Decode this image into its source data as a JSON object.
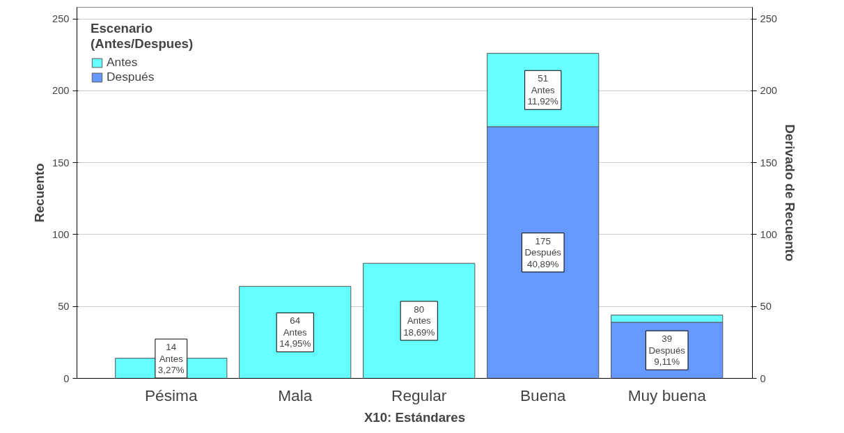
{
  "chart_data": {
    "type": "bar",
    "stacked": true,
    "categories": [
      "Pésima",
      "Mala",
      "Regular",
      "Buena",
      "Muy buena"
    ],
    "series": [
      {
        "name": "Después",
        "color": "#6699ff",
        "values": [
          null,
          null,
          null,
          175,
          39
        ],
        "value_labels": [
          null,
          null,
          null,
          "175\nDespués\n40,89%",
          "39\nDespués\n9,11%"
        ]
      },
      {
        "name": "Antes",
        "color": "#66ffff",
        "values": [
          14,
          64,
          80,
          51,
          5
        ],
        "value_labels": [
          "14\nAntes\n3,27%",
          "64\nAntes\n14,95%",
          "80\nAntes\n18,69%",
          "51\nAntes\n11,92%",
          null
        ]
      }
    ],
    "xlabel": "X10: Estándares",
    "ylabel": "Recuento",
    "y2label": "Derivado de Recuento",
    "legend_title": "Escenario\n(Antes/Despues)",
    "legend": "top left",
    "ylim": [
      0,
      258
    ],
    "yticks": [
      0,
      50,
      100,
      150,
      200,
      250
    ],
    "y2lim": [
      0,
      258
    ],
    "y2ticks": [
      0,
      50,
      100,
      150,
      200,
      250
    ],
    "grid": "y"
  }
}
